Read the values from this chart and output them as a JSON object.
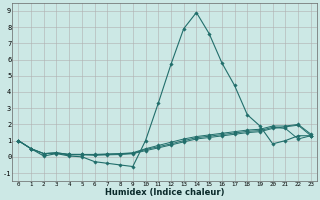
{
  "xlabel": "Humidex (Indice chaleur)",
  "x_values": [
    0,
    1,
    2,
    3,
    4,
    5,
    6,
    7,
    8,
    9,
    10,
    11,
    12,
    13,
    14,
    15,
    16,
    17,
    18,
    19,
    20,
    21,
    22,
    23
  ],
  "line1_y": [
    1.0,
    0.5,
    0.05,
    0.2,
    0.05,
    0.0,
    -0.3,
    -0.4,
    -0.5,
    -0.6,
    1.0,
    3.3,
    5.7,
    7.9,
    8.9,
    7.6,
    5.8,
    4.4,
    2.6,
    1.9,
    0.8,
    1.0,
    1.3,
    1.3
  ],
  "line2_y": [
    1.0,
    0.5,
    0.2,
    0.25,
    0.15,
    0.15,
    0.15,
    0.18,
    0.2,
    0.25,
    0.5,
    0.7,
    0.9,
    1.1,
    1.25,
    1.35,
    1.45,
    1.55,
    1.65,
    1.7,
    1.9,
    1.9,
    2.0,
    1.4
  ],
  "line3_y": [
    1.0,
    0.5,
    0.2,
    0.25,
    0.15,
    0.15,
    0.12,
    0.15,
    0.18,
    0.22,
    0.45,
    0.62,
    0.8,
    1.0,
    1.18,
    1.27,
    1.37,
    1.47,
    1.57,
    1.62,
    1.82,
    1.75,
    1.1,
    1.3
  ],
  "line4_y": [
    1.0,
    0.5,
    0.2,
    0.22,
    0.12,
    0.12,
    0.1,
    0.12,
    0.14,
    0.19,
    0.38,
    0.55,
    0.73,
    0.92,
    1.1,
    1.19,
    1.29,
    1.39,
    1.49,
    1.55,
    1.75,
    1.85,
    1.95,
    1.3
  ],
  "line_color": "#216e6b",
  "bg_color": "#cce8e5",
  "grid_color": "#b0b0b0",
  "ylim": [
    -1.5,
    9.5
  ],
  "xlim": [
    -0.5,
    23.5
  ],
  "yticks": [
    -1,
    0,
    1,
    2,
    3,
    4,
    5,
    6,
    7,
    8,
    9
  ],
  "xticks": [
    0,
    1,
    2,
    3,
    4,
    5,
    6,
    7,
    8,
    9,
    10,
    11,
    12,
    13,
    14,
    15,
    16,
    17,
    18,
    19,
    20,
    21,
    22,
    23
  ]
}
